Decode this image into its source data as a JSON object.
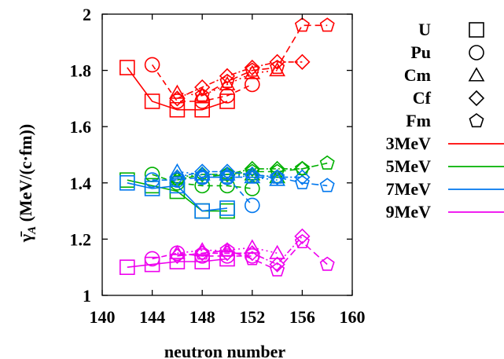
{
  "chart_data": {
    "type": "line",
    "xlabel": "neutron number",
    "ylabel": "γ̄_A (MeV/(c·fm))",
    "ylabel_parts": {
      "gamma": "γ̄",
      "sub": "A",
      "rest": " (MeV/(c·fm))"
    },
    "xlim": [
      140,
      160
    ],
    "ylim": [
      1,
      2
    ],
    "x_ticks": [
      140,
      144,
      148,
      152,
      156,
      160
    ],
    "y_ticks": [
      1,
      1.2,
      1.4,
      1.6,
      1.8,
      2
    ],
    "x_tick_labels": [
      "140",
      "144",
      "148",
      "152",
      "156",
      "160"
    ],
    "y_tick_labels": [
      "1",
      "1.2",
      "1.4",
      "1.6",
      "1.8",
      "2"
    ],
    "grid": false,
    "legend_position": "right",
    "markers_legend": [
      {
        "label": "U",
        "marker": "square"
      },
      {
        "label": "Pu",
        "marker": "circle"
      },
      {
        "label": "Cm",
        "marker": "triangle"
      },
      {
        "label": "Cf",
        "marker": "diamond"
      },
      {
        "label": "Fm",
        "marker": "pentagon"
      }
    ],
    "energy_legend": [
      {
        "label": "3MeV",
        "color": "#ff0000"
      },
      {
        "label": "5MeV",
        "color": "#00b000"
      },
      {
        "label": "7MeV",
        "color": "#0077ee"
      },
      {
        "label": "9MeV",
        "color": "#ee00ee"
      }
    ],
    "series": [
      {
        "energy": "3MeV",
        "element": "U",
        "x": [
          142,
          144,
          146,
          148,
          150
        ],
        "y": [
          1.81,
          1.69,
          1.66,
          1.66,
          1.69
        ]
      },
      {
        "energy": "3MeV",
        "element": "Pu",
        "x": [
          144,
          146,
          148,
          150,
          152
        ],
        "y": [
          1.82,
          1.69,
          1.69,
          1.71,
          1.75
        ]
      },
      {
        "energy": "3MeV",
        "element": "Cm",
        "x": [
          146,
          148,
          150,
          152,
          154
        ],
        "y": [
          1.72,
          1.71,
          1.75,
          1.79,
          1.8
        ]
      },
      {
        "energy": "3MeV",
        "element": "Cf",
        "x": [
          146,
          148,
          150,
          152,
          154,
          156
        ],
        "y": [
          1.7,
          1.74,
          1.78,
          1.81,
          1.83,
          1.83
        ]
      },
      {
        "energy": "3MeV",
        "element": "Fm",
        "x": [
          148,
          150,
          152,
          154,
          156,
          158
        ],
        "y": [
          1.71,
          1.76,
          1.8,
          1.81,
          1.96,
          1.96
        ]
      },
      {
        "energy": "5MeV",
        "element": "U",
        "x": [
          142,
          144,
          146,
          148,
          150
        ],
        "y": [
          1.41,
          1.39,
          1.37,
          1.3,
          1.3
        ]
      },
      {
        "energy": "5MeV",
        "element": "Pu",
        "x": [
          144,
          146,
          148,
          150,
          152
        ],
        "y": [
          1.43,
          1.4,
          1.39,
          1.39,
          1.38
        ]
      },
      {
        "energy": "5MeV",
        "element": "Cm",
        "x": [
          146,
          148,
          150,
          152,
          154
        ],
        "y": [
          1.42,
          1.43,
          1.43,
          1.43,
          1.42
        ]
      },
      {
        "energy": "5MeV",
        "element": "Cf",
        "x": [
          146,
          148,
          150,
          152,
          154,
          156
        ],
        "y": [
          1.41,
          1.43,
          1.43,
          1.45,
          1.45,
          1.45
        ]
      },
      {
        "energy": "5MeV",
        "element": "Fm",
        "x": [
          148,
          150,
          152,
          154,
          156,
          158
        ],
        "y": [
          1.42,
          1.43,
          1.44,
          1.44,
          1.45,
          1.47
        ]
      },
      {
        "energy": "7MeV",
        "element": "U",
        "x": [
          142,
          144,
          146,
          148,
          150
        ],
        "y": [
          1.4,
          1.38,
          1.39,
          1.3,
          1.31
        ]
      },
      {
        "energy": "7MeV",
        "element": "Pu",
        "x": [
          144,
          146,
          148,
          150,
          152
        ],
        "y": [
          1.41,
          1.41,
          1.42,
          1.42,
          1.32
        ]
      },
      {
        "energy": "7MeV",
        "element": "Cm",
        "x": [
          146,
          148,
          150,
          152,
          154
        ],
        "y": [
          1.44,
          1.43,
          1.43,
          1.42,
          1.41
        ]
      },
      {
        "energy": "7MeV",
        "element": "Cf",
        "x": [
          146,
          148,
          150,
          152,
          154,
          156
        ],
        "y": [
          1.42,
          1.44,
          1.44,
          1.43,
          1.42,
          1.42
        ]
      },
      {
        "energy": "7MeV",
        "element": "Fm",
        "x": [
          148,
          150,
          152,
          154,
          156,
          158
        ],
        "y": [
          1.42,
          1.42,
          1.42,
          1.42,
          1.4,
          1.39
        ]
      },
      {
        "energy": "9MeV",
        "element": "U",
        "x": [
          142,
          144,
          146,
          148,
          150
        ],
        "y": [
          1.1,
          1.11,
          1.12,
          1.12,
          1.13
        ]
      },
      {
        "energy": "9MeV",
        "element": "Pu",
        "x": [
          144,
          146,
          148,
          150,
          152
        ],
        "y": [
          1.13,
          1.15,
          1.14,
          1.14,
          1.14
        ]
      },
      {
        "energy": "9MeV",
        "element": "Cm",
        "x": [
          146,
          148,
          150,
          152,
          154
        ],
        "y": [
          1.15,
          1.16,
          1.16,
          1.17,
          1.15
        ]
      },
      {
        "energy": "9MeV",
        "element": "Cf",
        "x": [
          146,
          148,
          150,
          152,
          154,
          156
        ],
        "y": [
          1.14,
          1.15,
          1.15,
          1.15,
          1.11,
          1.21
        ]
      },
      {
        "energy": "9MeV",
        "element": "Fm",
        "x": [
          148,
          150,
          152,
          154,
          156,
          158
        ],
        "y": [
          1.15,
          1.16,
          1.13,
          1.09,
          1.19,
          1.11
        ]
      }
    ]
  }
}
